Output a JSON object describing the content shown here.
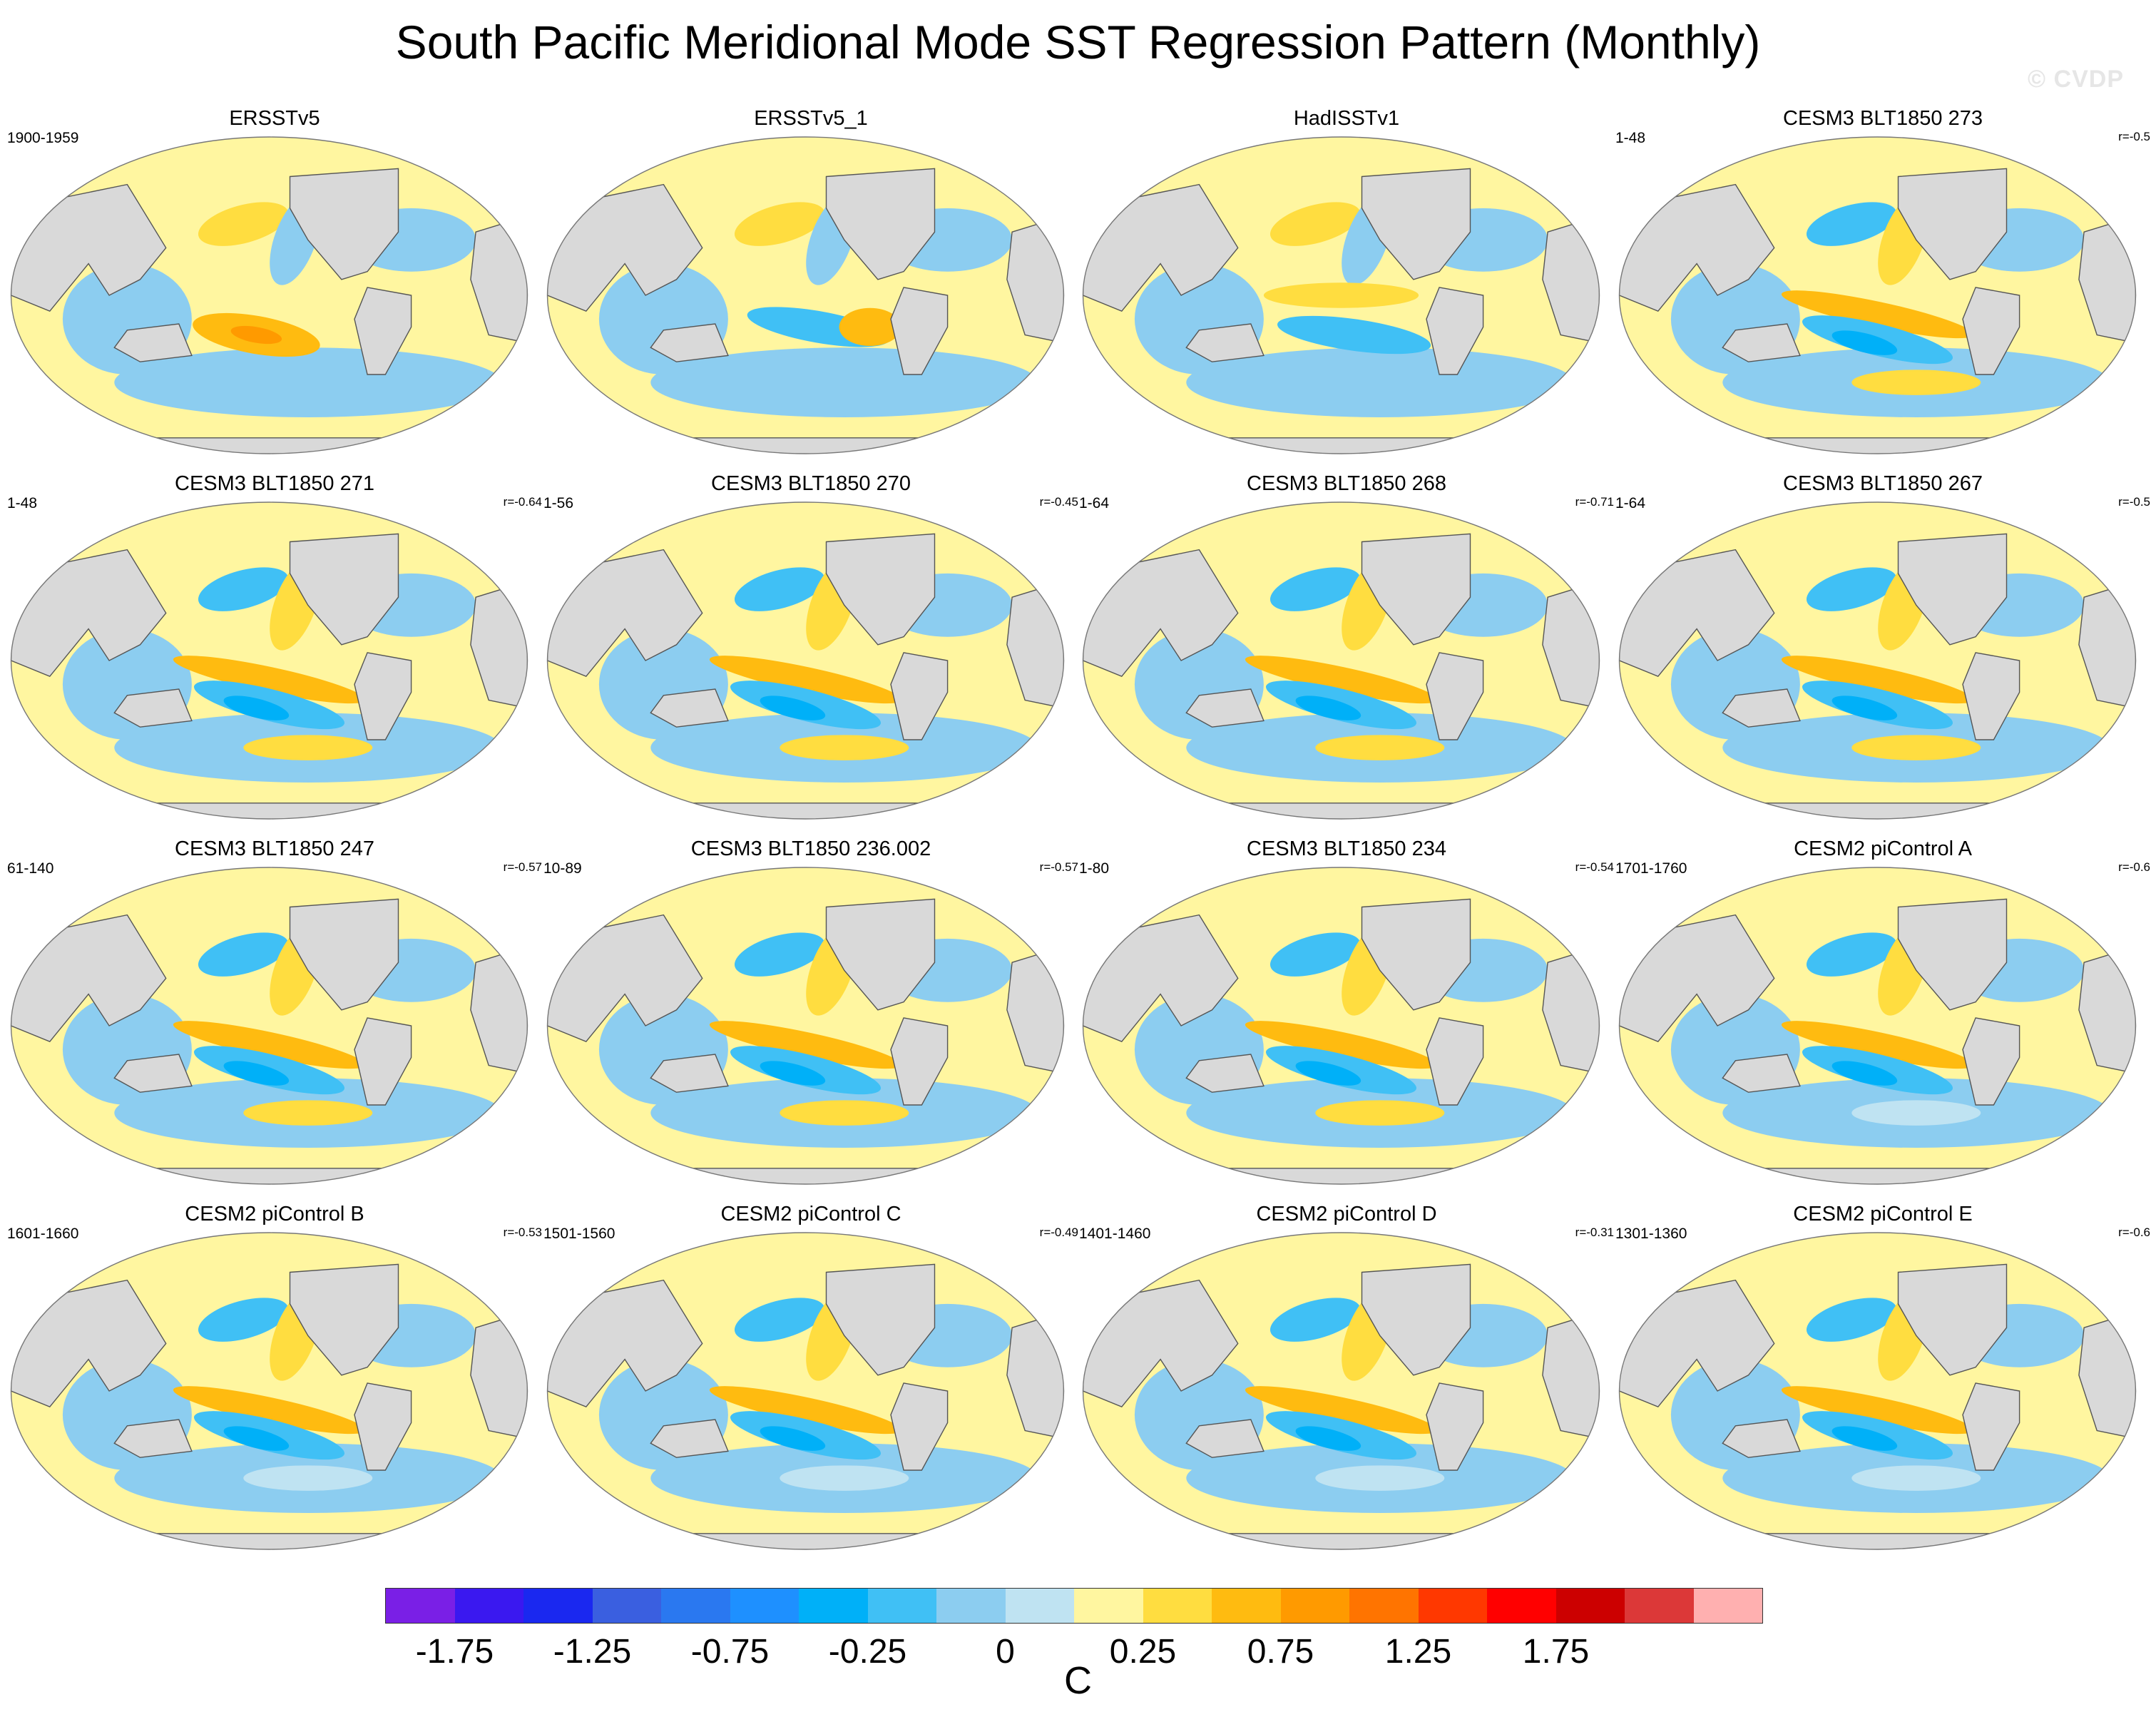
{
  "title": "South Pacific Meridional Mode SST Regression Pattern (Monthly)",
  "watermark": "© CVDP",
  "chart_data": {
    "type": "heatmap",
    "projection": "Robinson (global, Pacific-centered)",
    "variable": "SST regression",
    "panels": [
      {
        "title": "ERSSTv5",
        "years": "1900-1959",
        "r": ""
      },
      {
        "title": "ERSSTv5_1",
        "years": "",
        "r": ""
      },
      {
        "title": "HadISSTv1",
        "years": "",
        "r": ""
      },
      {
        "title": "CESM3 BLT1850 273",
        "years": "1-48",
        "r": "r=-0.5"
      },
      {
        "title": "CESM3 BLT1850 271",
        "years": "1-48",
        "r": "r=-0.64"
      },
      {
        "title": "CESM3 BLT1850 270",
        "years": "1-56",
        "r": "r=-0.45"
      },
      {
        "title": "CESM3 BLT1850 268",
        "years": "1-64",
        "r": "r=-0.71"
      },
      {
        "title": "CESM3 BLT1850 267",
        "years": "1-64",
        "r": "r=-0.5"
      },
      {
        "title": "CESM3 BLT1850 247",
        "years": "61-140",
        "r": "r=-0.57"
      },
      {
        "title": "CESM3 BLT1850 236.002",
        "years": "10-89",
        "r": "r=-0.57"
      },
      {
        "title": "CESM3 BLT1850 234",
        "years": "1-80",
        "r": "r=-0.54"
      },
      {
        "title": "CESM2 piControl A",
        "years": "1701-1760",
        "r": "r=-0.6"
      },
      {
        "title": "CESM2 piControl B",
        "years": "1601-1660",
        "r": "r=-0.53"
      },
      {
        "title": "CESM2 piControl C",
        "years": "1501-1560",
        "r": "r=-0.49"
      },
      {
        "title": "CESM2 piControl D",
        "years": "1401-1460",
        "r": "r=-0.31"
      },
      {
        "title": "CESM2 piControl E",
        "years": "1301-1360",
        "r": "r=-0.6"
      }
    ],
    "colorbar": {
      "units": "C",
      "levels": [
        -1.75,
        -1.5,
        -1.25,
        -1.0,
        -0.75,
        -0.5,
        -0.25,
        -0.1,
        0,
        0.1,
        0.25,
        0.5,
        0.75,
        1.0,
        1.25,
        1.5,
        1.75
      ],
      "tick_labels": [
        "-1.75",
        "-1.25",
        "-0.75",
        "-0.25",
        "0",
        "0.25",
        "0.75",
        "1.25",
        "1.75"
      ],
      "colors": [
        "#7a1fe6",
        "#3a18f0",
        "#1a28f0",
        "#3a5fe0",
        "#2a78f0",
        "#1e90ff",
        "#00b0f8",
        "#40c0f5",
        "#8ccdf0",
        "#bfe3f2",
        "#fff6a0",
        "#ffdd40",
        "#ffbb10",
        "#ff9a00",
        "#ff7400",
        "#ff3800",
        "#ff0000",
        "#cc0000",
        "#dc3838",
        "#ffb0b0"
      ]
    }
  }
}
